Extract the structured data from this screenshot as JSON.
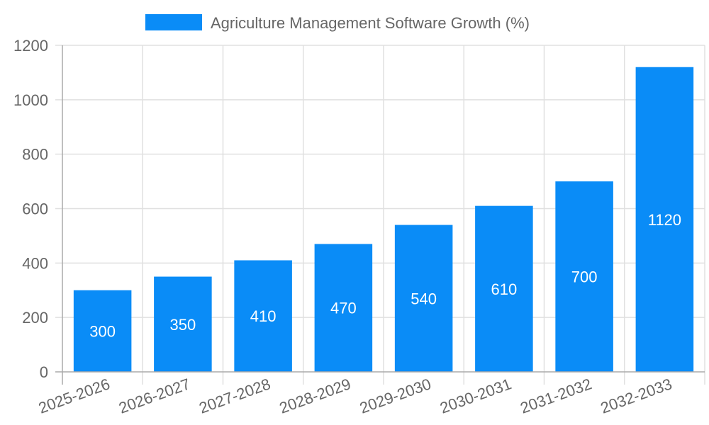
{
  "chart_data": {
    "type": "bar",
    "title": "",
    "legend": [
      {
        "label": "Agriculture Management Software Growth (%)",
        "color": "#0a8cf7"
      }
    ],
    "legend_position": "top",
    "categories": [
      "2025-2026",
      "2026-2027",
      "2027-2028",
      "2028-2029",
      "2029-2030",
      "2030-2031",
      "2031-2032",
      "2032-2033"
    ],
    "series": [
      {
        "name": "Agriculture Management Software Growth (%)",
        "values": [
          300,
          350,
          410,
          470,
          540,
          610,
          700,
          1120
        ],
        "color": "#0a8cf7"
      }
    ],
    "data_labels": [
      "300",
      "350",
      "410",
      "470",
      "540",
      "610",
      "700",
      "1120"
    ],
    "xlabel": "",
    "ylabel": "",
    "ylim": [
      0,
      1200
    ],
    "y_ticks": [
      "0",
      "200",
      "400",
      "600",
      "800",
      "1000",
      "1200"
    ],
    "grid": true
  },
  "legend": {
    "label": "Agriculture Management Software Growth (%)"
  }
}
